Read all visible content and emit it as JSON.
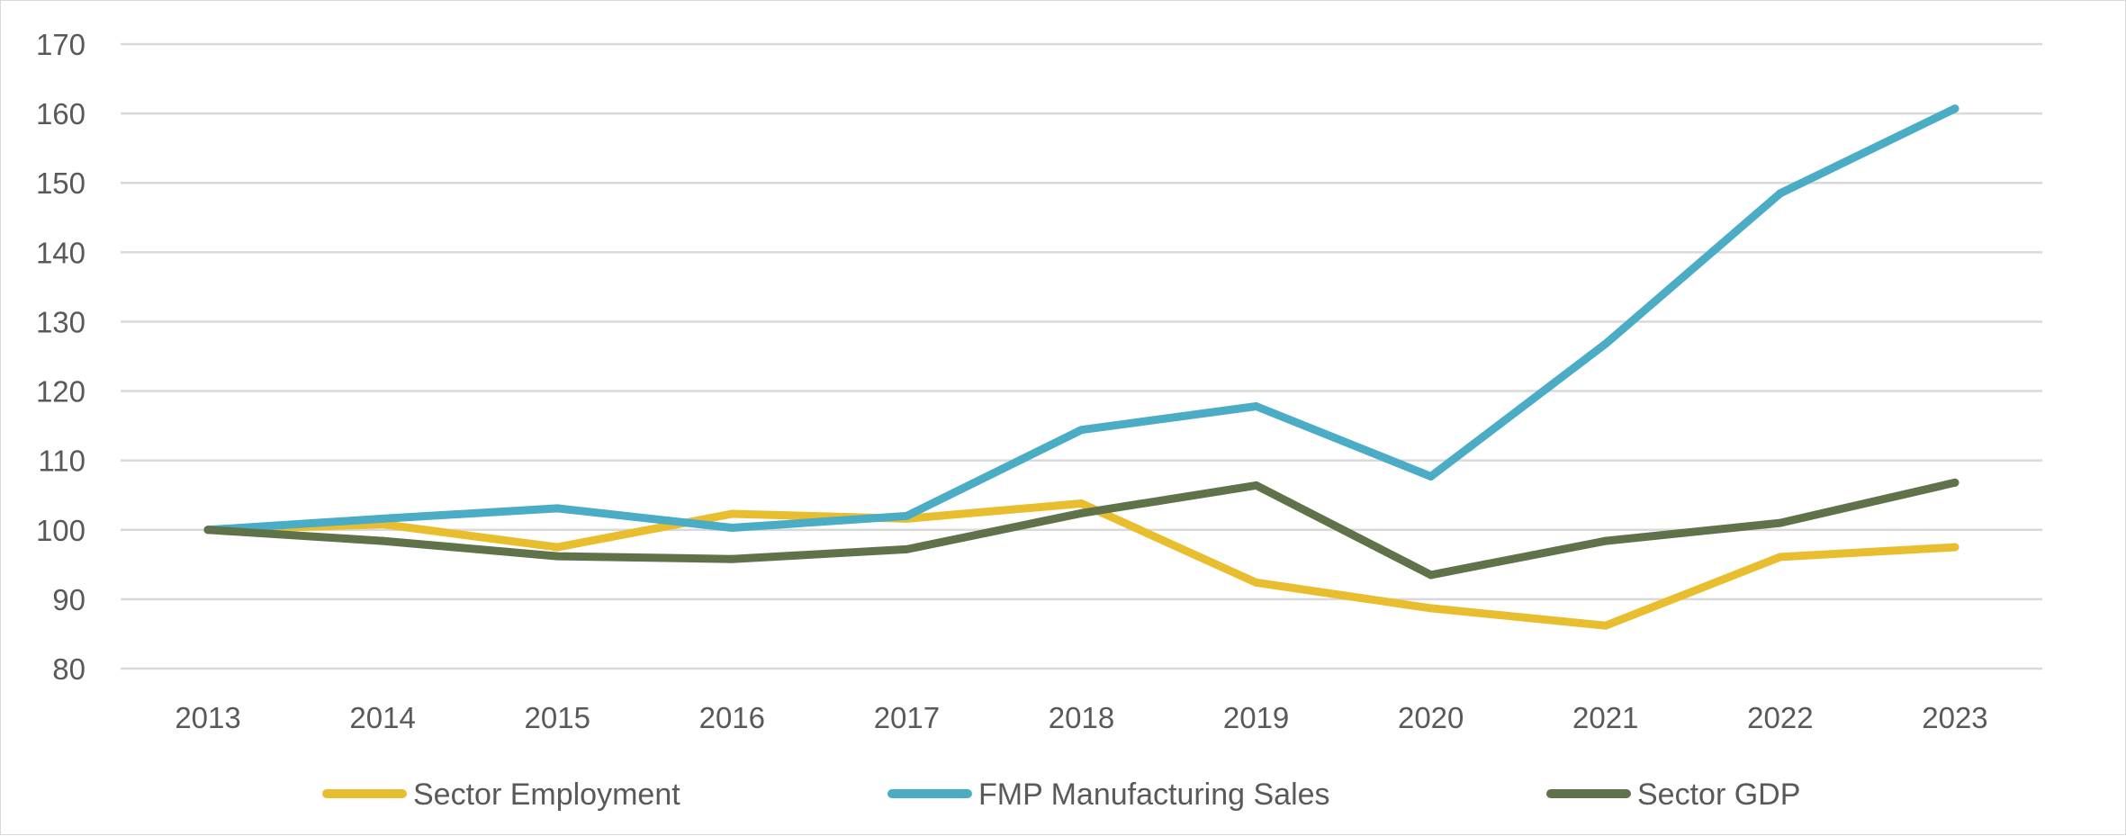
{
  "chart_data": {
    "type": "line",
    "title": "",
    "xlabel": "",
    "ylabel": "",
    "categories": [
      "2013",
      "2014",
      "2015",
      "2016",
      "2017",
      "2018",
      "2019",
      "2020",
      "2021",
      "2022",
      "2023"
    ],
    "ylim": [
      80,
      170
    ],
    "yticks": [
      80,
      90,
      100,
      110,
      120,
      130,
      140,
      150,
      160,
      170
    ],
    "grid": true,
    "legend_position": "bottom",
    "series": [
      {
        "name": "Sector Employment",
        "color": "#E8BE2F",
        "values": [
          100,
          100.8,
          97.5,
          102.3,
          101.6,
          103.8,
          92.4,
          88.7,
          86.2,
          96.1,
          97.5
        ]
      },
      {
        "name": "FMP Manufacturing Sales",
        "color": "#4BACC6",
        "values": [
          100,
          101.6,
          103.1,
          100.3,
          102,
          114.4,
          117.8,
          107.7,
          126.8,
          148.5,
          160.7
        ]
      },
      {
        "name": "Sector GDP",
        "color": "#5F7249",
        "values": [
          100,
          98.4,
          96.2,
          95.8,
          97.2,
          102.4,
          106.4,
          93.5,
          98.4,
          101,
          106.8
        ]
      }
    ]
  }
}
